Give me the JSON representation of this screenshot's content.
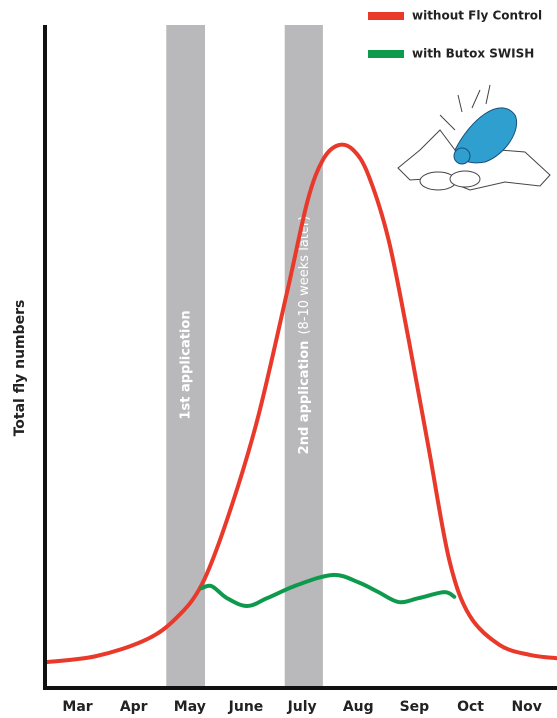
{
  "chart_data": {
    "type": "line",
    "y_label": "Total fly numbers",
    "xlim": [
      2.42,
      11.54
    ],
    "ylim": [
      0,
      100
    ],
    "xticks": [
      {
        "value": 3,
        "label": "Mar"
      },
      {
        "value": 4,
        "label": "Apr"
      },
      {
        "value": 5,
        "label": "May"
      },
      {
        "value": 6,
        "label": "June"
      },
      {
        "value": 7,
        "label": "July"
      },
      {
        "value": 8,
        "label": "Aug"
      },
      {
        "value": 9,
        "label": "Sep"
      },
      {
        "value": 10,
        "label": "Oct"
      },
      {
        "value": 11,
        "label": "Nov"
      }
    ],
    "bands": [
      {
        "start": 4.58,
        "end": 5.27,
        "label": "1st application",
        "color": "#b9b9bb"
      },
      {
        "start": 6.69,
        "end": 7.37,
        "label": "2nd application",
        "note": "(8-10 weeks later)",
        "color": "#b9b9bb"
      }
    ],
    "series": [
      {
        "name": "without Fly Control",
        "color": "#e8392b",
        "x": [
          2.42,
          3.32,
          4.22,
          4.76,
          5.21,
          5.66,
          6.2,
          6.74,
          7.1,
          7.37,
          7.64,
          7.91,
          8.18,
          8.54,
          8.9,
          9.26,
          9.62,
          9.98,
          10.52,
          11.06,
          11.54
        ],
        "values": [
          3.6,
          4.5,
          7.0,
          10.3,
          15.3,
          25.1,
          40.2,
          59.9,
          73.5,
          79.6,
          81.8,
          81.1,
          77.3,
          67.5,
          52.3,
          35.7,
          19.1,
          10.7,
          6.2,
          4.7,
          4.2
        ]
      },
      {
        "name": "with Butox SWISH",
        "color": "#0e9a4c",
        "x": [
          5.21,
          5.39,
          5.66,
          6.02,
          6.38,
          6.92,
          7.55,
          8.0,
          8.36,
          8.72,
          9.08,
          9.53,
          9.71
        ],
        "values": [
          14.8,
          15.1,
          13.3,
          12.1,
          13.3,
          15.3,
          16.8,
          15.7,
          14.2,
          12.7,
          13.3,
          14.2,
          13.5
        ]
      }
    ]
  }
}
